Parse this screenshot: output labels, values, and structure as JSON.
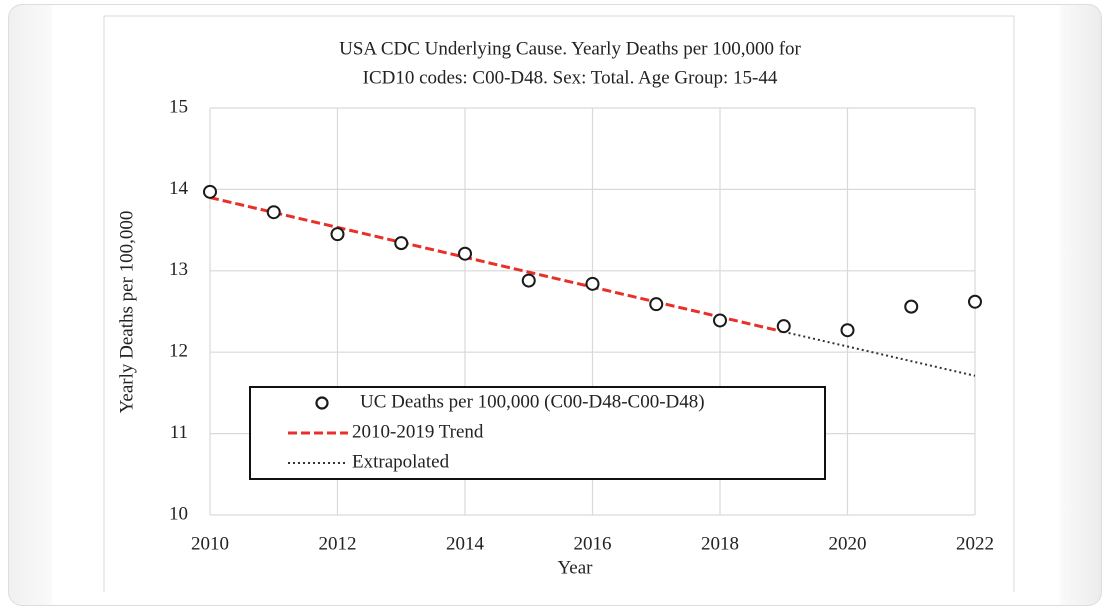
{
  "chart_data": {
    "type": "scatter",
    "title": [
      "USA CDC Underlying Cause. Yearly Deaths per 100,000 for",
      "ICD10 codes: C00-D48. Sex: Total. Age Group: 15-44"
    ],
    "xlabel": "Year",
    "ylabel": "Yearly Deaths per 100,000",
    "xlim": [
      2010,
      2022
    ],
    "xticks": [
      2010,
      2012,
      2014,
      2016,
      2018,
      2020,
      2022
    ],
    "ylim": [
      10,
      15
    ],
    "yticks": [
      10,
      11,
      12,
      13,
      14,
      15
    ],
    "grid": true,
    "legend": "bottom-left",
    "series": [
      {
        "name": "UC Deaths per 100,000 (C00-D48-C00-D48)",
        "style": "marker",
        "color": "#1a1a1a",
        "x": [
          2010,
          2011,
          2012,
          2013,
          2014,
          2015,
          2016,
          2017,
          2018,
          2019,
          2020,
          2021,
          2022
        ],
        "values": [
          13.97,
          13.72,
          13.45,
          13.34,
          13.21,
          12.88,
          12.84,
          12.59,
          12.39,
          12.32,
          12.27,
          12.56,
          12.62
        ]
      },
      {
        "name": "2010-2019 Trend",
        "style": "dashed",
        "color": "#e8302a",
        "x": [
          2010,
          2019
        ],
        "values": [
          13.9,
          12.25
        ]
      },
      {
        "name": "Extrapolated",
        "style": "dotted",
        "color": "#333333",
        "x": [
          2019,
          2022
        ],
        "values": [
          12.25,
          11.71
        ]
      }
    ]
  }
}
